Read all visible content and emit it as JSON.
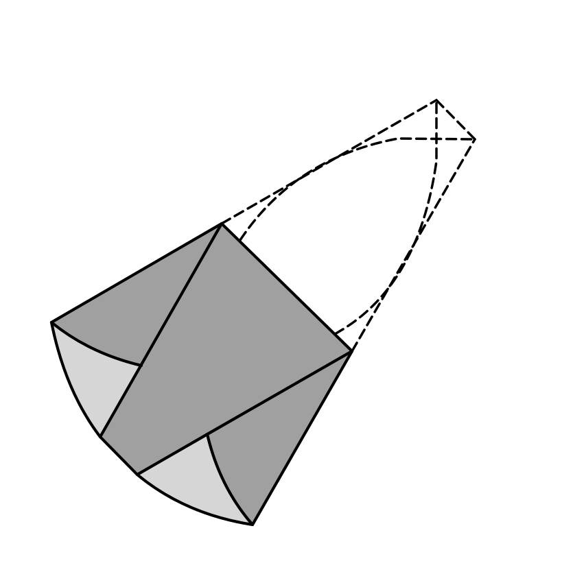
{
  "figure": {
    "kind": "solid-dissection-diagram",
    "colors": {
      "background": "#ffffff",
      "dark_face": "#a0a0a0",
      "light_face": "#d6d6d6",
      "edge": "#000000",
      "hidden_edge": "#000000"
    },
    "faces": [
      {
        "id": "left-upper-face",
        "shade": "dark_face"
      },
      {
        "id": "left-lower-face",
        "shade": "light_face"
      },
      {
        "id": "central-square-face",
        "shade": "dark_face"
      },
      {
        "id": "bottom-light-face",
        "shade": "light_face"
      },
      {
        "id": "bottom-dark-face",
        "shade": "dark_face"
      }
    ],
    "hidden_edges": [
      "hidden-edge-top-straight",
      "hidden-edge-top-arc",
      "hidden-edge-right-arc",
      "hidden-edge-right-straight",
      "hidden-edge-apex-cross-a",
      "hidden-edge-apex-cross-b",
      "hidden-edge-apex-right"
    ]
  }
}
